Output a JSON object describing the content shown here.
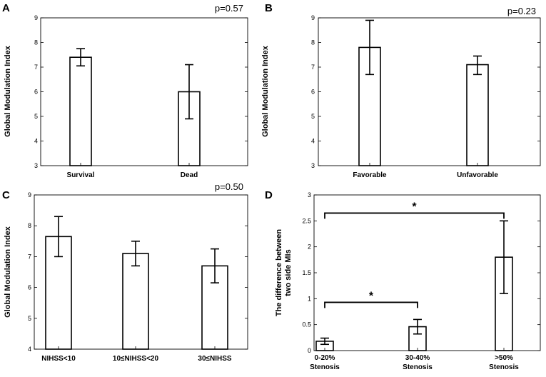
{
  "chart_data": [
    {
      "panel": "A",
      "type": "bar",
      "pvalue": "p=0.57",
      "ylabel": "Global Modulation Index",
      "ylim": [
        3,
        9
      ],
      "yticks": [
        "3",
        "4",
        "5",
        "6",
        "7",
        "8",
        "9"
      ],
      "categories": [
        "Survival",
        "Dead"
      ],
      "values": [
        7.4,
        6.0
      ],
      "errors": [
        [
          7.05,
          7.75
        ],
        [
          4.9,
          7.1
        ]
      ]
    },
    {
      "panel": "B",
      "type": "bar",
      "pvalue": "p=0.23",
      "ylabel": "Global Modulation Index",
      "ylim": [
        3,
        9
      ],
      "yticks": [
        "3",
        "4",
        "5",
        "6",
        "7",
        "8",
        "9"
      ],
      "categories": [
        "Favorable",
        "Unfavorable"
      ],
      "values": [
        7.8,
        7.1
      ],
      "errors": [
        [
          6.7,
          8.9
        ],
        [
          6.7,
          7.45
        ]
      ]
    },
    {
      "panel": "C",
      "type": "bar",
      "pvalue": "p=0.50",
      "ylabel": "Global Modulation Index",
      "ylim": [
        4,
        9
      ],
      "yticks": [
        "4",
        "5",
        "6",
        "7",
        "8",
        "9"
      ],
      "categories": [
        "NIHSS<10",
        "10≤NIHSS<20",
        "30≤NIHSS"
      ],
      "values": [
        7.65,
        7.1,
        6.7
      ],
      "errors": [
        [
          7.0,
          8.3
        ],
        [
          6.7,
          7.5
        ],
        [
          6.15,
          7.25
        ]
      ]
    },
    {
      "panel": "D",
      "type": "bar",
      "pvalue": "",
      "ylabel": [
        "The difference between",
        "two side MIs"
      ],
      "ylim": [
        0,
        3
      ],
      "yticks": [
        "0",
        "0.5",
        "1",
        "1.5",
        "2",
        "2.5",
        "3"
      ],
      "categories": [
        [
          "0-20%",
          "Stenosis"
        ],
        [
          "30-40%",
          "Stenosis"
        ],
        [
          ">50%",
          "Stenosis"
        ]
      ],
      "values": [
        0.18,
        0.46,
        1.8
      ],
      "errors": [
        [
          0.12,
          0.24
        ],
        [
          0.32,
          0.6
        ],
        [
          1.1,
          2.5
        ]
      ],
      "significance": [
        {
          "from": 0,
          "to": 2,
          "level": 2.65,
          "label": "*"
        },
        {
          "from": 0,
          "to": 1,
          "level": 0.93,
          "label": "*"
        }
      ]
    }
  ]
}
